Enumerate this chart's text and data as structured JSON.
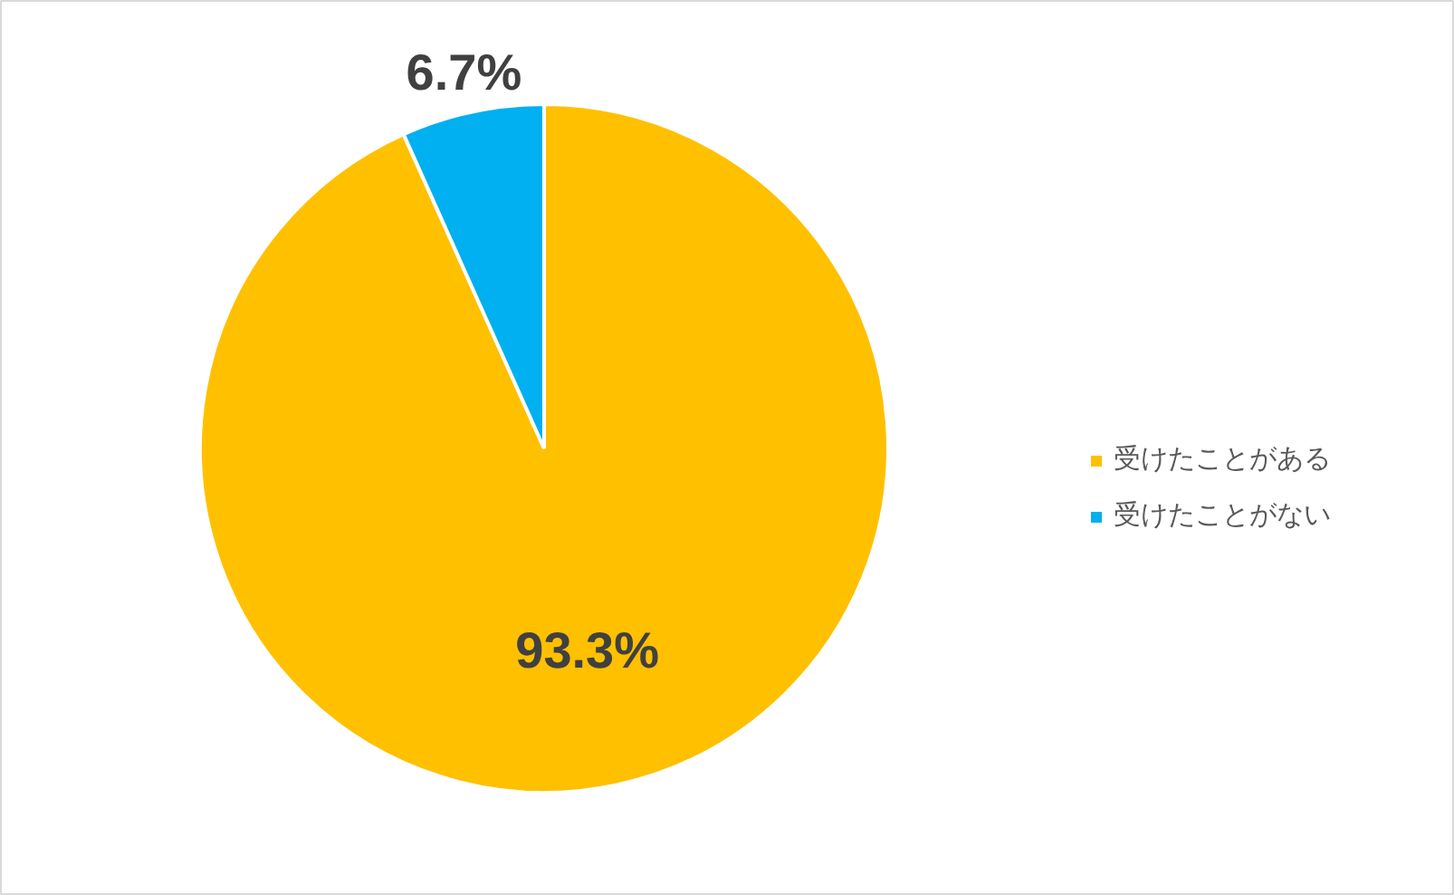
{
  "chart_data": {
    "type": "pie",
    "categories": [
      "受けたことがある",
      "受けたことがない"
    ],
    "values": [
      93.3,
      6.7
    ],
    "colors": [
      "#ffc000",
      "#00b0f0"
    ],
    "value_labels": [
      "93.3%",
      "6.7%"
    ],
    "legend": "right"
  }
}
